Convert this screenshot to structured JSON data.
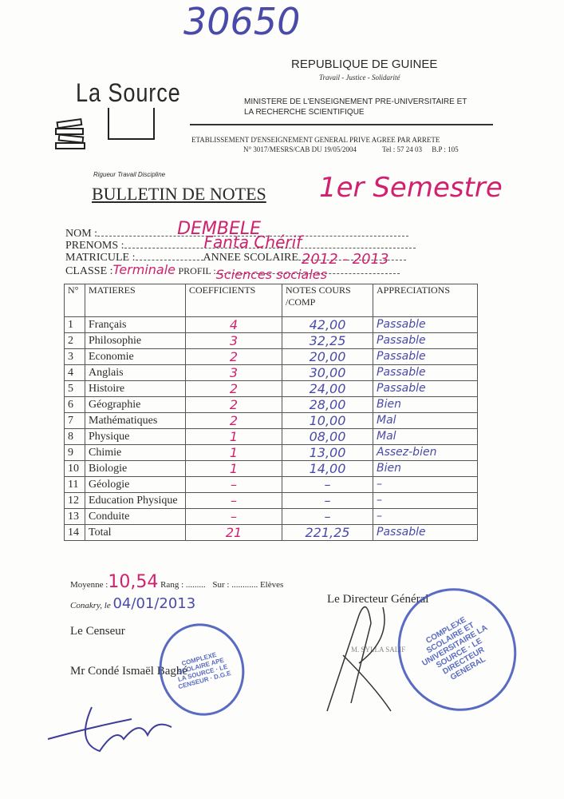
{
  "handwritten_ref": "30650",
  "header": {
    "country": "REPUBLIQUE DE GUINEE",
    "motto": "Travail - Justice - Solidarité",
    "ministry_line1": "MINISTERE DE L'ENSEIGNEMENT PRE-UNIVERSITAIRE ET",
    "ministry_line2": "LA RECHERCHE SCIENTIFIQUE",
    "establishment_line1": "ETABLISSEMENT D'ENSEIGNEMENT GENERAL PRIVE AGREE PAR ARRETE",
    "establishment_line2": "N° 3017/MESRS/CAB DU 19/05/2004",
    "tel": "Tel : 57 24 03",
    "bp": "B.P : 105"
  },
  "logo": {
    "text": "La Source"
  },
  "school_motto": "Rigueur Travail Discipline",
  "title": "BULLETIN DE NOTES",
  "semester": "1er Semestre",
  "student": {
    "nom_label": "NOM :",
    "nom": "DEMBELE",
    "prenoms_label": "PRENOMS :",
    "prenoms": "Fanta Chérif",
    "matricule_label": "MATRICULE :",
    "annee_label": "ANNEE SCOLAIRE",
    "annee": "2012 - 2013",
    "classe_label": "CLASSE :",
    "classe": "Terminale",
    "profil_label": "PROFIL :",
    "profil": "Sciences sociales"
  },
  "table": {
    "headers": [
      "N°",
      "MATIERES",
      "COEFFICIENTS",
      "NOTES COURS /COMP",
      "APPRECIATIONS"
    ],
    "rows": [
      {
        "n": "1",
        "matiere": "Français",
        "coef": "4",
        "note": "42,00",
        "app": "Passable"
      },
      {
        "n": "2",
        "matiere": "Philosophie",
        "coef": "3",
        "note": "32,25",
        "app": "Passable"
      },
      {
        "n": "3",
        "matiere": "Economie",
        "coef": "2",
        "note": "20,00",
        "app": "Passable"
      },
      {
        "n": "4",
        "matiere": "Anglais",
        "coef": "3",
        "note": "30,00",
        "app": "Passable"
      },
      {
        "n": "5",
        "matiere": "Histoire",
        "coef": "2",
        "note": "24,00",
        "app": "Passable"
      },
      {
        "n": "6",
        "matiere": "Géographie",
        "coef": "2",
        "note": "28,00",
        "app": "Bien"
      },
      {
        "n": "7",
        "matiere": "Mathématiques",
        "coef": "2",
        "note": "10,00",
        "app": "Mal"
      },
      {
        "n": "8",
        "matiere": "Physique",
        "coef": "1",
        "note": "08,00",
        "app": "Mal"
      },
      {
        "n": "9",
        "matiere": "Chimie",
        "coef": "1",
        "note": "13,00",
        "app": "Assez-bien"
      },
      {
        "n": "10",
        "matiere": "Biologie",
        "coef": "1",
        "note": "14,00",
        "app": "Bien"
      },
      {
        "n": "11",
        "matiere": "Géologie",
        "coef": "–",
        "note": "–",
        "app": "–"
      },
      {
        "n": "12",
        "matiere": "Education Physique",
        "coef": "–",
        "note": "–",
        "app": "–"
      },
      {
        "n": "13",
        "matiere": "Conduite",
        "coef": "–",
        "note": "–",
        "app": "–"
      },
      {
        "n": "14",
        "matiere": "Total",
        "coef": "21",
        "note": "221,25",
        "app": "Passable"
      }
    ]
  },
  "footer": {
    "moyenne_label": "Moyenne :",
    "moyenne": "10,54",
    "rang_label": "Rang : .........",
    "sur_label": "Sur : ............ Elèves",
    "lieu": "Conakry, le",
    "date": "04/01/2013",
    "directeur": "Le Directeur Général",
    "censeur": "Le Censeur",
    "censeur_name": "Mr Condé Ismaël Baghé",
    "directeur_name": "M. SYLLA SALIF"
  },
  "stamps": {
    "censeur": "COMPLEXE SCOLAIRE APE LA SOURCE · LE CENSEUR · D.G.E",
    "directeur": "COMPLEXE SCOLAIRE ET UNIVERSITAIRE LA SOURCE · LE DIRECTEUR GENERAL"
  }
}
